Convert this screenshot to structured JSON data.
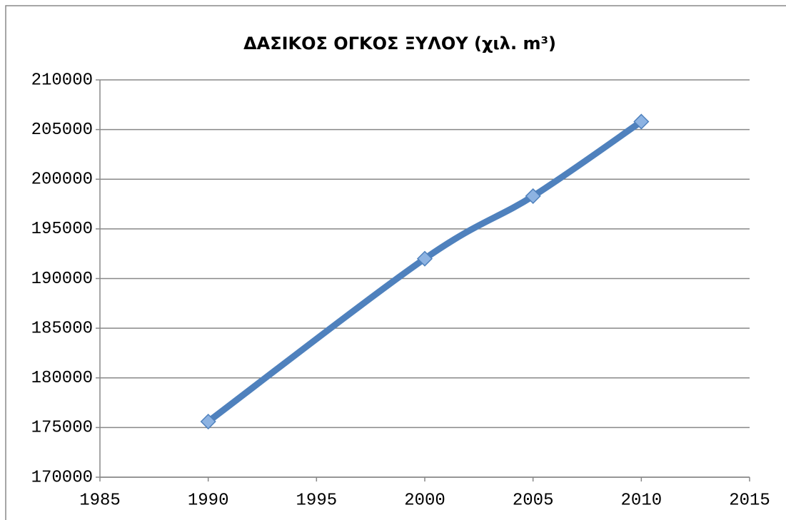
{
  "chart_data": {
    "type": "line",
    "title": "ΔΑΣΙΚΟΣ ΟΓΚΟΣ ΞΥΛΟΥ (χιλ. m³)",
    "x": [
      1990,
      2000,
      2005,
      2010
    ],
    "series": [
      {
        "name": null,
        "color": "#4f81bd",
        "marker_color": "#8db3e2",
        "values": [
          175600,
          192000,
          198300,
          205800
        ]
      }
    ],
    "xlim": [
      1985,
      2015
    ],
    "xticks": [
      1985,
      1990,
      1995,
      2000,
      2005,
      2010,
      2015
    ],
    "ylim": [
      170000,
      210000
    ],
    "yticks": [
      170000,
      175000,
      180000,
      185000,
      190000,
      195000,
      200000,
      205000,
      210000
    ],
    "grid": true,
    "smooth": true
  }
}
